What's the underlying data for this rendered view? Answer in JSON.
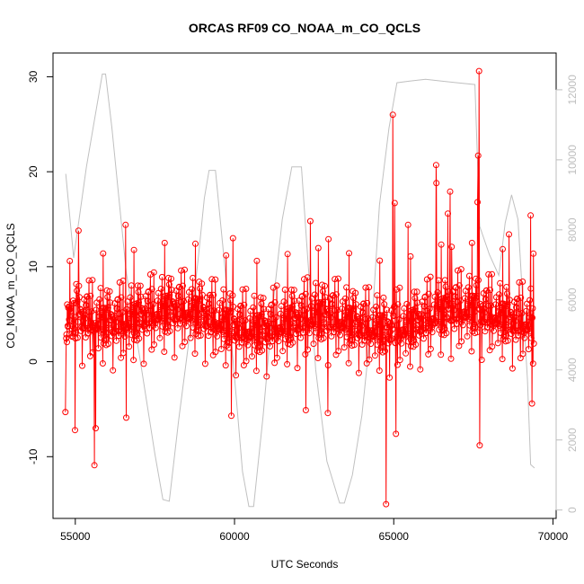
{
  "chart_data": {
    "type": "line",
    "title": "ORCAS RF09 CO_NOAA_m_CO_QCLS",
    "xlabel": "UTC Seconds",
    "ylabel": "CO_NOAA_m_CO_QCLS",
    "xlim": [
      54300,
      70100
    ],
    "ylim": [
      -16.5,
      32.5
    ],
    "y2lim": [
      -240,
      13050
    ],
    "x_ticks": [
      55000,
      60000,
      65000,
      70000
    ],
    "x_tick_labels": [
      "55000",
      "60000",
      "65000",
      "70000"
    ],
    "y_ticks": [
      -10,
      0,
      10,
      20,
      30
    ],
    "y_tick_labels": [
      "-10",
      "0",
      "10",
      "20",
      "30"
    ],
    "y2_ticks": [
      0,
      2000,
      4000,
      6000,
      8000,
      10000,
      12000
    ],
    "y2_tick_labels": [
      "0",
      "2000",
      "4000",
      "6000",
      "8000",
      "10000",
      "12000"
    ],
    "grid": false,
    "series": [
      {
        "role": "primary",
        "style": "line+points",
        "color": "#ff0000",
        "x_start": 54700,
        "x_end": 69400,
        "n_points": 1250,
        "baseline": 3.5,
        "spread": 3.2,
        "seed": 9,
        "extremes": [
          {
            "x": 64760,
            "y": -15.0
          },
          {
            "x": 64970,
            "y": 26.0
          },
          {
            "x": 65030,
            "y": 16.7
          },
          {
            "x": 65070,
            "y": -7.6
          },
          {
            "x": 66330,
            "y": 20.7
          },
          {
            "x": 66340,
            "y": 18.8
          },
          {
            "x": 66770,
            "y": 17.9
          },
          {
            "x": 67680,
            "y": 30.6
          },
          {
            "x": 67650,
            "y": 21.7
          },
          {
            "x": 67630,
            "y": 16.8
          },
          {
            "x": 67700,
            "y": -8.8
          },
          {
            "x": 55100,
            "y": 13.8
          },
          {
            "x": 55600,
            "y": -10.9
          },
          {
            "x": 55640,
            "y": -7.0
          },
          {
            "x": 54990,
            "y": -7.2
          },
          {
            "x": 54690,
            "y": -5.3
          },
          {
            "x": 56580,
            "y": 14.4
          },
          {
            "x": 56600,
            "y": -5.9
          },
          {
            "x": 59900,
            "y": -5.7
          },
          {
            "x": 59950,
            "y": 13.0
          },
          {
            "x": 62380,
            "y": 14.8
          },
          {
            "x": 62240,
            "y": -5.1
          },
          {
            "x": 62930,
            "y": -5.4
          },
          {
            "x": 62950,
            "y": 12.9
          },
          {
            "x": 66700,
            "y": 15.6
          },
          {
            "x": 66820,
            "y": 12.1
          },
          {
            "x": 65450,
            "y": 14.4
          },
          {
            "x": 68620,
            "y": 13.4
          },
          {
            "x": 69300,
            "y": 15.4
          },
          {
            "x": 69340,
            "y": -4.4
          }
        ]
      },
      {
        "role": "secondary-axis",
        "style": "line",
        "color": "#c0c0c0",
        "x": [
          54700,
          54950,
          55350,
          55850,
          55950,
          56150,
          56600,
          57050,
          57500,
          57750,
          57950,
          58250,
          58550,
          58850,
          59050,
          59200,
          59400,
          59700,
          60000,
          60250,
          60450,
          60600,
          60900,
          61200,
          61500,
          61800,
          62100,
          62300,
          62550,
          62900,
          63300,
          63450,
          63700,
          64000,
          64350,
          64550,
          64850,
          65100,
          65500,
          66000,
          66500,
          67000,
          67550,
          67700,
          68000,
          68300,
          68500,
          68700,
          68900,
          69050,
          69200,
          69300,
          69420
        ],
        "y": [
          9600,
          7200,
          9800,
          12450,
          12450,
          10900,
          6800,
          4200,
          1600,
          300,
          250,
          2600,
          4700,
          7100,
          8900,
          9700,
          9700,
          6900,
          3800,
          1100,
          100,
          100,
          2700,
          5800,
          8300,
          9800,
          9800,
          7200,
          4000,
          1400,
          200,
          200,
          1000,
          2700,
          5800,
          8700,
          10900,
          12200,
          12250,
          12300,
          12250,
          12200,
          12150,
          8100,
          7300,
          6700,
          8200,
          9000,
          8300,
          6000,
          3700,
          1300,
          1200
        ]
      }
    ]
  }
}
